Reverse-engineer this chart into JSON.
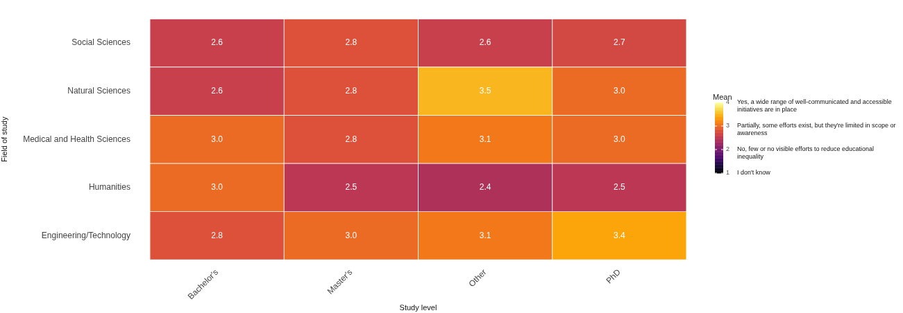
{
  "chart_data": {
    "type": "heatmap",
    "xlabel": "Study level",
    "ylabel": "Field of study",
    "clabel": "Mean",
    "categories": [
      "Bachelor's",
      "Master's",
      "Other",
      "PhD"
    ],
    "y_categories": [
      "Social Sciences",
      "Natural Sciences",
      "Medical and Health Sciences",
      "Humanities",
      "Engineering/Technology"
    ],
    "cells": [
      [
        2.6,
        2.8,
        2.6,
        2.7
      ],
      [
        2.6,
        2.8,
        3.5,
        3.0
      ],
      [
        3.0,
        2.8,
        3.1,
        3.0
      ],
      [
        3.0,
        2.5,
        2.4,
        2.5
      ],
      [
        2.8,
        3.0,
        3.1,
        3.4
      ]
    ],
    "cell_labels": [
      [
        "2.6",
        "2.8",
        "2.6",
        "2.7"
      ],
      [
        "2.6",
        "2.8",
        "3.5",
        "3.0"
      ],
      [
        "3.0",
        "2.8",
        "3.1",
        "3.0"
      ],
      [
        "3.0",
        "2.5",
        "2.4",
        "2.5"
      ],
      [
        "2.8",
        "3.0",
        "3.1",
        "3.4"
      ]
    ],
    "clim": [
      1,
      4
    ],
    "cticks": [
      1,
      2,
      3,
      4
    ],
    "data_labels": true,
    "grid": false,
    "annotations": [
      "I don't know",
      "No, few or no visible efforts to reduce educational inequality",
      "Partially, some efforts exist, but they're limited in scope or awareness",
      "Yes, a wide range of well-communicated and accessible initiatives are in place"
    ]
  }
}
